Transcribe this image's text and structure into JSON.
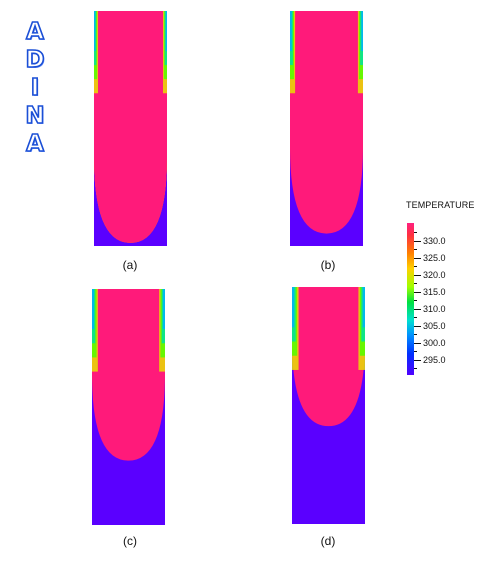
{
  "logo": {
    "letters": [
      "A",
      "D",
      "I",
      "N",
      "A"
    ]
  },
  "panels": [
    {
      "caption": "(a)"
    },
    {
      "caption": "(b)"
    },
    {
      "caption": "(c)"
    },
    {
      "caption": "(d)"
    }
  ],
  "legend": {
    "title": "TEMPERATURE",
    "labels": [
      "330.0",
      "325.0",
      "320.0",
      "315.0",
      "310.0",
      "305.0",
      "300.0",
      "295.0"
    ],
    "colors": [
      "#ff1a7a",
      "#ff5a20",
      "#ffa000",
      "#e8e000",
      "#50ff00",
      "#00e0a0",
      "#00b0ff",
      "#1040ff",
      "#5a00ff"
    ]
  }
}
